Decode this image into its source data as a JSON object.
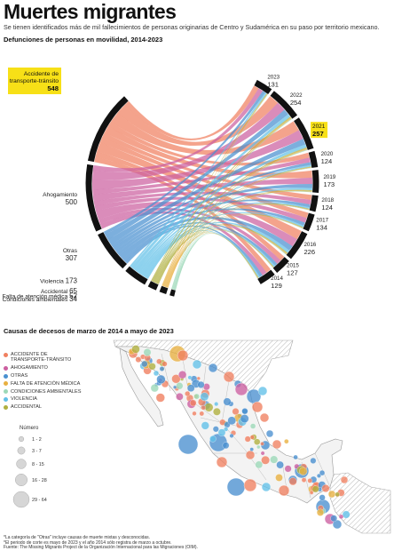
{
  "header": {
    "title": "Muertes migrantes",
    "subtitle": "Se tienen identificados más de mil fallecimientos de personas originarias de Centro y Sudamérica en su paso por territorio mexicano.",
    "section_chord": "Defunciones de personas en movilidad, 2014-2023",
    "section_map": "Causas de decesos de marzo de 2014 a mayo de 2023"
  },
  "colors": {
    "transito": "#f08060",
    "ahogamiento": "#cc5fa0",
    "otras": "#4a90d0",
    "atencion": "#e8b040",
    "condiciones": "#9cd8b8",
    "violencia": "#62c0e8",
    "accidental": "#b0b040",
    "highlight": "#f7e017",
    "arc": "#111111"
  },
  "chart_data": [
    {
      "type": "chord",
      "title": "Defunciones de personas en movilidad, 2014-2023",
      "causes": [
        {
          "name": "Accidente de transporte-tránsito",
          "value": 548,
          "key": "transito",
          "highlight": true
        },
        {
          "name": "Ahogamiento",
          "value": 500,
          "key": "ahogamiento"
        },
        {
          "name": "Otras",
          "value": 307,
          "key": "otras"
        },
        {
          "name": "Violencia",
          "value": 173,
          "key": "violencia"
        },
        {
          "name": "Accidental",
          "value": 65,
          "key": "accidental"
        },
        {
          "name": "Falta de atención médica",
          "value": 52,
          "key": "atencion"
        },
        {
          "name": "Condiciones ambientales",
          "value": 34,
          "key": "condiciones"
        }
      ],
      "years": [
        {
          "year": "2023",
          "value": 131
        },
        {
          "year": "2022",
          "value": 254
        },
        {
          "year": "2021",
          "value": 257,
          "highlight": true
        },
        {
          "year": "2020",
          "value": 124
        },
        {
          "year": "2019",
          "value": 173
        },
        {
          "year": "2018",
          "value": 124
        },
        {
          "year": "2017",
          "value": 134
        },
        {
          "year": "2016",
          "value": 226
        },
        {
          "year": "2015",
          "value": 127
        },
        {
          "year": "2014",
          "value": 129
        }
      ]
    },
    {
      "type": "scatter",
      "title": "Causas de decesos de marzo de 2014 a mayo de 2023",
      "legend_causes": [
        {
          "label": "ACCIDENTE DE TRANSPORTE-TRÁNSITO",
          "key": "transito"
        },
        {
          "label": "AHOGAMIENTO",
          "key": "ahogamiento"
        },
        {
          "label": "OTRAS",
          "key": "otras"
        },
        {
          "label": "FALTA DE ATENCIÓN MÉDICA",
          "key": "atencion"
        },
        {
          "label": "CONDICIONES AMBIENTALES",
          "key": "condiciones"
        },
        {
          "label": "VIOLENCIA",
          "key": "violencia"
        },
        {
          "label": "ACCIDENTAL",
          "key": "accidental"
        }
      ],
      "size_legend_title": "Número",
      "size_legend": [
        {
          "label": "1 - 2",
          "value": 1
        },
        {
          "label": "3 - 7",
          "value": 5
        },
        {
          "label": "8 - 15",
          "value": 12
        },
        {
          "label": "16 - 28",
          "value": 22
        },
        {
          "label": "29 - 64",
          "value": 46
        }
      ]
    }
  ],
  "notes": [
    "*La categoría de \"Otras\" incluye causas de muerte mixtas y desconocidas.",
    "*El periodo de corte es mayo de 2023 y el año 2014 sólo registra de marzo a octubre.",
    "Fuente: The Missing Migrants Project de la Organización Internacional para las Migraciones (OIM)."
  ]
}
